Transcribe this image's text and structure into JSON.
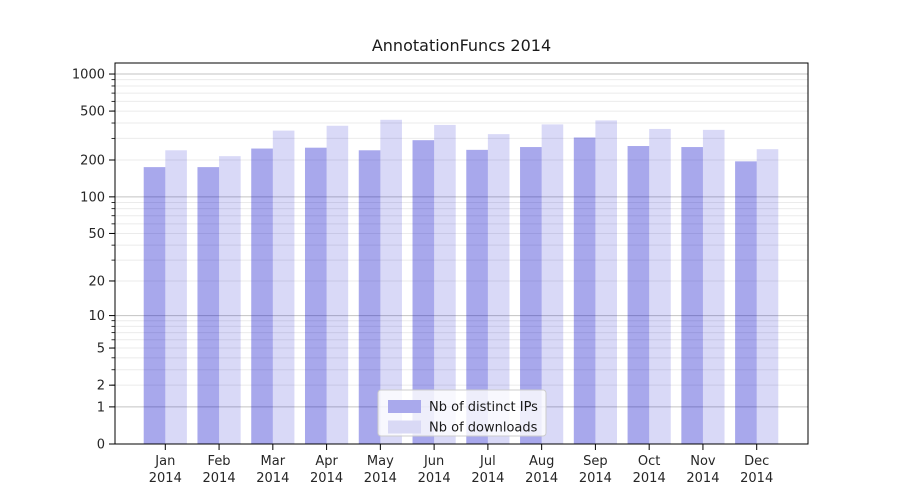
{
  "title": "AnnotationFuncs 2014",
  "chart_data": {
    "type": "bar",
    "title": "AnnotationFuncs 2014",
    "categories": [
      "Jan",
      "Feb",
      "Mar",
      "Apr",
      "May",
      "Jun",
      "Jul",
      "Aug",
      "Sep",
      "Oct",
      "Nov",
      "Dec"
    ],
    "category_year": "2014",
    "series": [
      {
        "name": "Nb of distinct IPs",
        "color": "rgba(0,0,200,0.34)",
        "legend_swatch_color": "#a9a9ec",
        "values": [
          175,
          175,
          248,
          252,
          240,
          290,
          242,
          255,
          305,
          260,
          255,
          195
        ]
      },
      {
        "name": "Nb of downloads",
        "color": "rgba(0,0,200,0.15)",
        "legend_swatch_color": "#d9d9f5",
        "values": [
          240,
          215,
          347,
          380,
          425,
          386,
          325,
          390,
          420,
          358,
          352,
          245
        ]
      }
    ],
    "xlabel": "",
    "ylabel": "",
    "yscale": "log1p",
    "yticks": [
      0,
      1,
      2,
      5,
      10,
      20,
      50,
      100,
      200,
      500,
      1000
    ],
    "ylim": [
      0,
      1229
    ],
    "grid": true,
    "legend_position": "lower center"
  }
}
